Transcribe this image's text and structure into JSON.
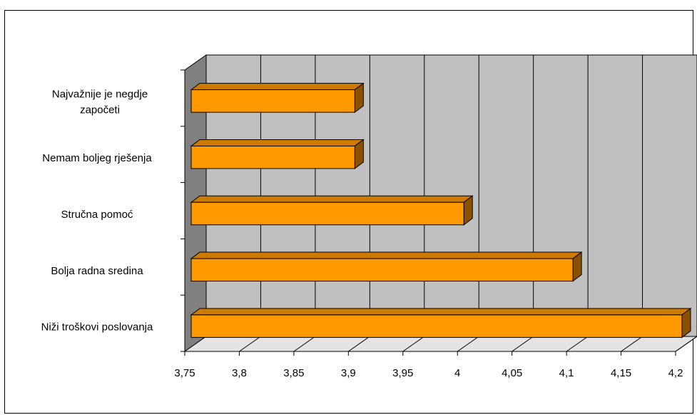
{
  "chart_data": {
    "type": "bar",
    "orientation": "horizontal",
    "style": "3d",
    "title": "",
    "xlabel": "",
    "ylabel": "",
    "categories": [
      "Najvažnije je negdje započeti",
      "Nemam boljeg rješenja",
      "Stručna pomoć",
      "Bolja radna sredina",
      "Niži troškovi poslovanja"
    ],
    "values": [
      3.9,
      3.9,
      4.0,
      4.1,
      4.2
    ],
    "xlim": [
      3.75,
      4.2
    ],
    "xticks": [
      3.75,
      3.8,
      3.85,
      3.9,
      3.95,
      4.0,
      4.05,
      4.1,
      4.15,
      4.2
    ],
    "xtick_labels": [
      "3,75",
      "3,8",
      "3,85",
      "3,9",
      "3,95",
      "4",
      "4,05",
      "4,1",
      "4,15",
      "4,2"
    ],
    "grid": true,
    "legend": "none",
    "colors": {
      "bar_front": "#ff9900",
      "bar_top": "#cc7a00",
      "bar_side": "#8a5200",
      "back_wall": "#c0c0c0",
      "side_wall": "#808080",
      "floor": "#e4e4e4"
    }
  }
}
